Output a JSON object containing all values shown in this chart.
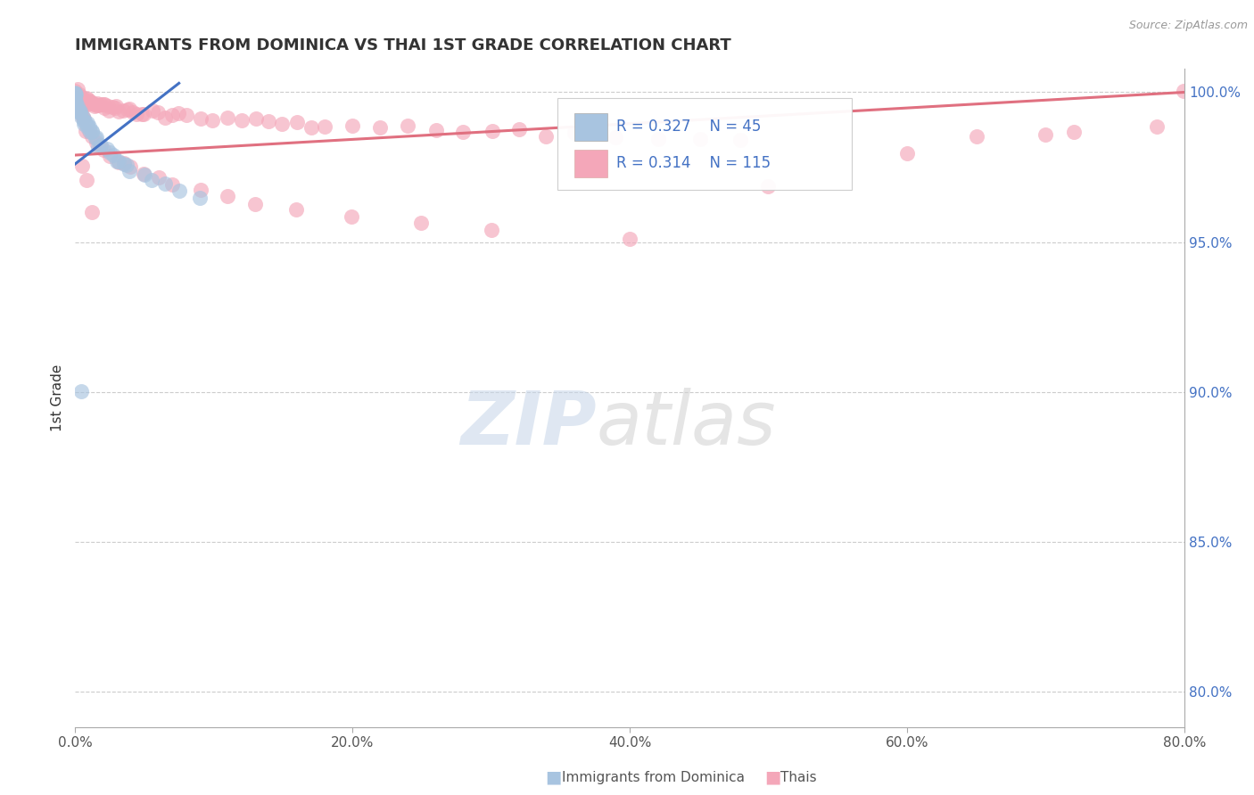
{
  "title": "IMMIGRANTS FROM DOMINICA VS THAI 1ST GRADE CORRELATION CHART",
  "source_text": "Source: ZipAtlas.com",
  "ylabel": "1st Grade",
  "xlim": [
    0.0,
    0.8
  ],
  "ylim": [
    0.788,
    1.008
  ],
  "xtick_labels": [
    "0.0%",
    "20.0%",
    "40.0%",
    "60.0%",
    "80.0%"
  ],
  "xtick_values": [
    0.0,
    0.2,
    0.4,
    0.6,
    0.8
  ],
  "ytick_labels": [
    "80.0%",
    "85.0%",
    "90.0%",
    "95.0%",
    "100.0%"
  ],
  "ytick_values": [
    0.8,
    0.85,
    0.9,
    0.95,
    1.0
  ],
  "dominica_R": 0.327,
  "dominica_N": 45,
  "thai_R": 0.314,
  "thai_N": 115,
  "dominica_color": "#a8c4e0",
  "thai_color": "#f4a7b9",
  "dominica_line_color": "#4472c4",
  "thai_line_color": "#e07080",
  "background_color": "#ffffff",
  "dom_x": [
    0.0,
    0.0,
    0.0,
    0.0,
    0.0,
    0.0,
    0.0,
    0.0,
    0.0,
    0.0,
    0.002,
    0.002,
    0.003,
    0.004,
    0.005,
    0.005,
    0.006,
    0.006,
    0.007,
    0.008,
    0.008,
    0.009,
    0.01,
    0.01,
    0.011,
    0.012,
    0.013,
    0.015,
    0.015,
    0.017,
    0.019,
    0.022,
    0.025,
    0.028,
    0.03,
    0.032,
    0.035,
    0.038,
    0.04,
    0.05,
    0.055,
    0.065,
    0.075,
    0.09,
    0.005
  ],
  "dom_y": [
    1.0,
    1.0,
    0.999,
    0.999,
    0.998,
    0.998,
    0.997,
    0.996,
    0.996,
    0.995,
    0.995,
    0.994,
    0.994,
    0.993,
    0.993,
    0.992,
    0.992,
    0.991,
    0.99,
    0.99,
    0.989,
    0.989,
    0.988,
    0.988,
    0.987,
    0.987,
    0.986,
    0.985,
    0.984,
    0.983,
    0.982,
    0.981,
    0.98,
    0.979,
    0.978,
    0.977,
    0.976,
    0.975,
    0.974,
    0.973,
    0.971,
    0.969,
    0.967,
    0.965,
    0.9
  ],
  "thai_x": [
    0.0,
    0.0,
    0.0,
    0.001,
    0.001,
    0.002,
    0.002,
    0.003,
    0.003,
    0.004,
    0.004,
    0.005,
    0.005,
    0.006,
    0.006,
    0.007,
    0.008,
    0.008,
    0.009,
    0.01,
    0.01,
    0.011,
    0.012,
    0.013,
    0.014,
    0.015,
    0.016,
    0.017,
    0.018,
    0.02,
    0.021,
    0.022,
    0.023,
    0.025,
    0.027,
    0.028,
    0.03,
    0.032,
    0.035,
    0.038,
    0.04,
    0.042,
    0.045,
    0.048,
    0.05,
    0.055,
    0.06,
    0.065,
    0.07,
    0.075,
    0.08,
    0.09,
    0.1,
    0.11,
    0.12,
    0.13,
    0.14,
    0.15,
    0.16,
    0.17,
    0.18,
    0.2,
    0.22,
    0.24,
    0.26,
    0.28,
    0.3,
    0.32,
    0.34,
    0.36,
    0.39,
    0.42,
    0.45,
    0.48,
    0.001,
    0.002,
    0.003,
    0.003,
    0.004,
    0.005,
    0.006,
    0.007,
    0.008,
    0.01,
    0.012,
    0.015,
    0.018,
    0.02,
    0.025,
    0.03,
    0.035,
    0.04,
    0.05,
    0.06,
    0.07,
    0.09,
    0.11,
    0.13,
    0.16,
    0.2,
    0.25,
    0.3,
    0.4,
    0.5,
    0.6,
    0.65,
    0.7,
    0.72,
    0.78,
    0.8,
    0.005,
    0.008,
    0.012
  ],
  "thai_y": [
    1.0,
    1.0,
    0.999,
    0.999,
    0.999,
    0.999,
    0.999,
    0.999,
    0.998,
    0.998,
    0.998,
    0.998,
    0.998,
    0.998,
    0.997,
    0.997,
    0.997,
    0.997,
    0.997,
    0.997,
    0.997,
    0.997,
    0.996,
    0.996,
    0.996,
    0.996,
    0.996,
    0.996,
    0.996,
    0.996,
    0.995,
    0.995,
    0.995,
    0.995,
    0.995,
    0.995,
    0.995,
    0.994,
    0.994,
    0.994,
    0.994,
    0.994,
    0.993,
    0.993,
    0.993,
    0.993,
    0.993,
    0.992,
    0.992,
    0.992,
    0.992,
    0.992,
    0.991,
    0.991,
    0.991,
    0.991,
    0.99,
    0.99,
    0.99,
    0.99,
    0.989,
    0.989,
    0.989,
    0.988,
    0.988,
    0.987,
    0.987,
    0.987,
    0.986,
    0.986,
    0.985,
    0.985,
    0.984,
    0.984,
    0.998,
    0.997,
    0.996,
    0.995,
    0.994,
    0.993,
    0.992,
    0.99,
    0.988,
    0.987,
    0.985,
    0.983,
    0.982,
    0.981,
    0.979,
    0.977,
    0.976,
    0.975,
    0.973,
    0.971,
    0.969,
    0.967,
    0.965,
    0.963,
    0.961,
    0.958,
    0.956,
    0.954,
    0.951,
    0.968,
    0.98,
    0.985,
    0.986,
    0.987,
    0.988,
    1.0,
    0.975,
    0.97,
    0.96
  ],
  "dom_trendline_x": [
    0.0,
    0.075
  ],
  "dom_trendline_y": [
    0.976,
    1.003
  ],
  "thai_trendline_x": [
    0.0,
    0.8
  ],
  "thai_trendline_y": [
    0.979,
    1.0
  ]
}
